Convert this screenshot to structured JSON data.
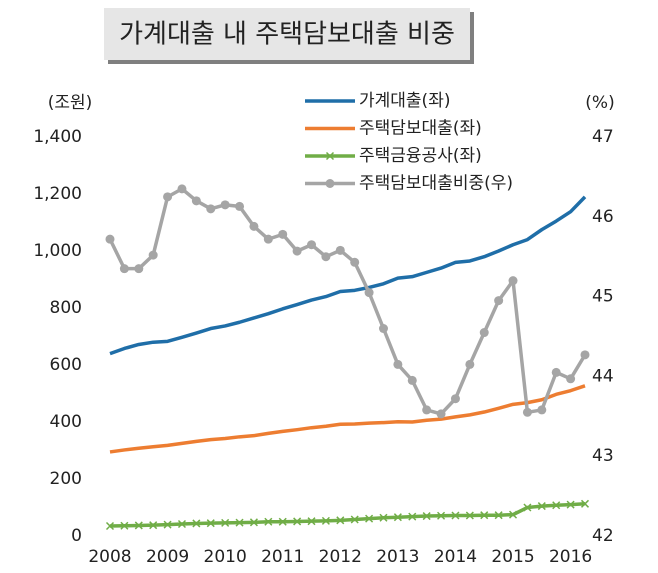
{
  "chart_data": {
    "type": "line",
    "title": "가계대출 내 주택담보대출 비중",
    "y_label": "(조원)",
    "y2_label": "(%)",
    "x": [
      2008,
      2008.25,
      2008.5,
      2008.75,
      2009,
      2009.25,
      2009.5,
      2009.75,
      2010,
      2010.25,
      2010.5,
      2010.75,
      2011,
      2011.25,
      2011.5,
      2011.75,
      2012,
      2012.25,
      2012.5,
      2012.75,
      2013,
      2013.25,
      2013.5,
      2013.75,
      2014,
      2014.25,
      2014.5,
      2014.75,
      2015,
      2015.25,
      2015.5,
      2015.75,
      2016,
      2016.25
    ],
    "xlim": [
      2008,
      2016.25
    ],
    "xticks": [
      2008,
      2009,
      2010,
      2011,
      2012,
      2013,
      2014,
      2015,
      2016
    ],
    "ylim": [
      0,
      1400
    ],
    "yticks": [
      0,
      200,
      400,
      600,
      800,
      {
        "value": 1000,
        "label": "1,000"
      },
      {
        "value": 1200,
        "label": "1,200"
      },
      {
        "value": 1400,
        "label": "1,400"
      }
    ],
    "y2lim": [
      42,
      47
    ],
    "y2ticks": [
      42,
      43,
      44,
      45,
      46,
      47
    ],
    "series": [
      {
        "name": "가계대출(좌)",
        "color": "#1f6ea8",
        "marker": "none",
        "values": [
          640,
          658,
          672,
          680,
          683,
          697,
          712,
          728,
          737,
          750,
          765,
          780,
          797,
          812,
          828,
          840,
          858,
          862,
          872,
          885,
          905,
          910,
          925,
          940,
          960,
          965,
          980,
          1000,
          1022,
          1040,
          1075,
          1105,
          1138,
          1190
        ]
      },
      {
        "name": "주택담보대출(좌)",
        "color": "#ed7d31",
        "marker": "none",
        "values": [
          295,
          302,
          308,
          313,
          318,
          325,
          332,
          338,
          342,
          348,
          352,
          360,
          367,
          373,
          380,
          385,
          392,
          393,
          396,
          398,
          401,
          400,
          406,
          410,
          418,
          425,
          435,
          448,
          462,
          468,
          478,
          497,
          510,
          527
        ]
      },
      {
        "name": "주택금융공사(좌)",
        "color": "#70ad47",
        "marker": "x",
        "values": [
          35,
          36,
          37,
          38,
          40,
          42,
          44,
          45,
          46,
          47,
          48,
          50,
          50,
          51,
          52,
          53,
          55,
          58,
          61,
          64,
          66,
          68,
          70,
          71,
          72,
          72,
          73,
          73,
          75,
          100,
          105,
          108,
          110,
          113
        ]
      },
      {
        "name": "주택담보대출비중(우)",
        "color": "#a5a5a5",
        "marker": "circle",
        "axis": "y2",
        "values": [
          45.72,
          45.35,
          45.35,
          45.52,
          46.25,
          46.35,
          46.2,
          46.1,
          46.15,
          46.13,
          45.88,
          45.72,
          45.78,
          45.57,
          45.65,
          45.5,
          45.58,
          45.43,
          45.05,
          44.6,
          44.15,
          43.95,
          43.58,
          43.53,
          43.72,
          44.15,
          44.55,
          44.95,
          45.2,
          43.55,
          43.58,
          44.05,
          43.97,
          44.27
        ]
      }
    ]
  }
}
